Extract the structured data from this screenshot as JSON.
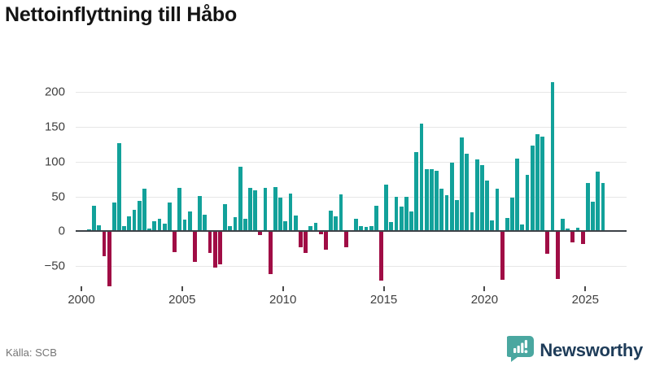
{
  "title": "Nettoinflyttning till Håbo",
  "source": "Källa: SCB",
  "branding": {
    "name": "Newsworthy",
    "logo_color": "#4aa7a0",
    "text_color": "#1e3c59"
  },
  "chart_data": {
    "type": "bar",
    "title": "Nettoinflyttning till Håbo",
    "xlabel": "",
    "ylabel": "",
    "x_unit": "quarter",
    "y_tick_values": [
      200,
      150,
      100,
      50,
      0,
      -50
    ],
    "y_tick_labels": [
      "200",
      "150",
      "100",
      "50",
      "0",
      "−50"
    ],
    "x_tick_years": [
      2000,
      2005,
      2010,
      2015,
      2020,
      2025
    ],
    "x_tick_labels": [
      "2000",
      "2005",
      "2010",
      "2015",
      "2020",
      "2025"
    ],
    "ylim": [
      -80,
      220
    ],
    "grid": true,
    "legend": false,
    "positive_color": "#12a19a",
    "negative_color": "#a00d45",
    "years": [
      {
        "year": 2000,
        "q": [
          0,
          3,
          37,
          9
        ]
      },
      {
        "year": 2001,
        "q": [
          -35,
          -78,
          41,
          127
        ]
      },
      {
        "year": 2002,
        "q": [
          8,
          21,
          31,
          44
        ]
      },
      {
        "year": 2003,
        "q": [
          61,
          4,
          14,
          18
        ]
      },
      {
        "year": 2004,
        "q": [
          11,
          41,
          -29,
          62
        ]
      },
      {
        "year": 2005,
        "q": [
          17,
          29,
          -43,
          51
        ]
      },
      {
        "year": 2006,
        "q": [
          24,
          -30,
          -51,
          -46
        ]
      },
      {
        "year": 2007,
        "q": [
          39,
          8,
          20,
          93
        ]
      },
      {
        "year": 2008,
        "q": [
          18,
          62,
          59,
          -4
        ]
      },
      {
        "year": 2009,
        "q": [
          62,
          -60,
          63,
          48
        ]
      },
      {
        "year": 2010,
        "q": [
          15,
          54,
          23,
          -22
        ]
      },
      {
        "year": 2011,
        "q": [
          -30,
          8,
          12,
          -3
        ]
      },
      {
        "year": 2012,
        "q": [
          -26,
          30,
          22,
          53
        ]
      },
      {
        "year": 2013,
        "q": [
          -22,
          2,
          18,
          8
        ]
      },
      {
        "year": 2014,
        "q": [
          6,
          7,
          37,
          -70
        ]
      },
      {
        "year": 2015,
        "q": [
          67,
          13,
          49,
          35
        ]
      },
      {
        "year": 2016,
        "q": [
          50,
          28,
          114,
          155
        ]
      },
      {
        "year": 2017,
        "q": [
          89,
          89,
          87,
          61
        ]
      },
      {
        "year": 2018,
        "q": [
          52,
          99,
          45,
          135
        ]
      },
      {
        "year": 2019,
        "q": [
          112,
          27,
          103,
          95
        ]
      },
      {
        "year": 2020,
        "q": [
          73,
          16,
          61,
          -69
        ]
      },
      {
        "year": 2021,
        "q": [
          19,
          48,
          105,
          10
        ]
      },
      {
        "year": 2022,
        "q": [
          81,
          123,
          139,
          136
        ]
      },
      {
        "year": 2023,
        "q": [
          -31,
          214,
          -67,
          18
        ]
      },
      {
        "year": 2024,
        "q": [
          4,
          -15,
          5,
          -17
        ]
      },
      {
        "year": 2025,
        "q": [
          69,
          42,
          86,
          69
        ]
      }
    ]
  }
}
